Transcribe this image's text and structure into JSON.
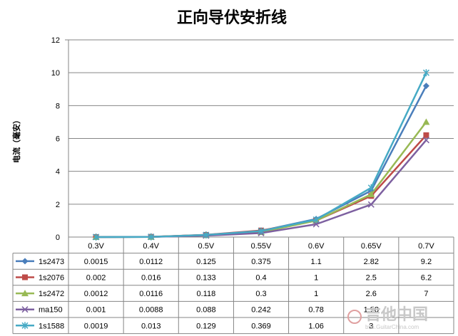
{
  "chart_data": {
    "type": "line",
    "title": "正向导伏安折线",
    "ylabel": "电流（毫安）",
    "xlabel": "",
    "ylim": [
      0,
      12
    ],
    "yticks": [
      0,
      2,
      4,
      6,
      8,
      10,
      12
    ],
    "grid": true,
    "legend": "table-bottom",
    "categories": [
      "0.3V",
      "0.4V",
      "0.5V",
      "0.55V",
      "0.6V",
      "0.65V",
      "0.7V"
    ],
    "series": [
      {
        "name": "1s2473",
        "color": "#4a7ebb",
        "marker": "diamond",
        "values": [
          0.0015,
          0.0112,
          0.125,
          0.375,
          1.1,
          2.82,
          9.2
        ],
        "labels": [
          "0.0015",
          "0.0112",
          "0.125",
          "0.375",
          "1.1",
          "2.82",
          "9.2"
        ]
      },
      {
        "name": "1s2076",
        "color": "#be4b48",
        "marker": "square",
        "values": [
          0.002,
          0.016,
          0.133,
          0.4,
          1,
          2.5,
          6.2
        ],
        "labels": [
          "0.002",
          "0.016",
          "0.133",
          "0.4",
          "1",
          "2.5",
          "6.2"
        ]
      },
      {
        "name": "1s2472",
        "color": "#98b954",
        "marker": "triangle",
        "values": [
          0.0012,
          0.0116,
          0.118,
          0.3,
          1,
          2.6,
          7
        ],
        "labels": [
          "0.0012",
          "0.0116",
          "0.118",
          "0.3",
          "1",
          "2.6",
          "7"
        ]
      },
      {
        "name": "ma150",
        "color": "#7d60a0",
        "marker": "x",
        "values": [
          0.001,
          0.0088,
          0.088,
          0.242,
          0.78,
          1.98,
          5.9
        ],
        "labels": [
          "0.001",
          "0.0088",
          "0.088",
          "0.242",
          "0.78",
          "1.98",
          ""
        ]
      },
      {
        "name": "1s1588",
        "color": "#46aac5",
        "marker": "star",
        "values": [
          0.0019,
          0.013,
          0.129,
          0.369,
          1.06,
          3,
          10
        ],
        "labels": [
          "0.0019",
          "0.013",
          "0.129",
          "0.369",
          "1.06",
          "3",
          ""
        ]
      }
    ]
  },
  "watermark": {
    "main": "吉他中国",
    "sub": "bbs.GuitarChina.com"
  }
}
